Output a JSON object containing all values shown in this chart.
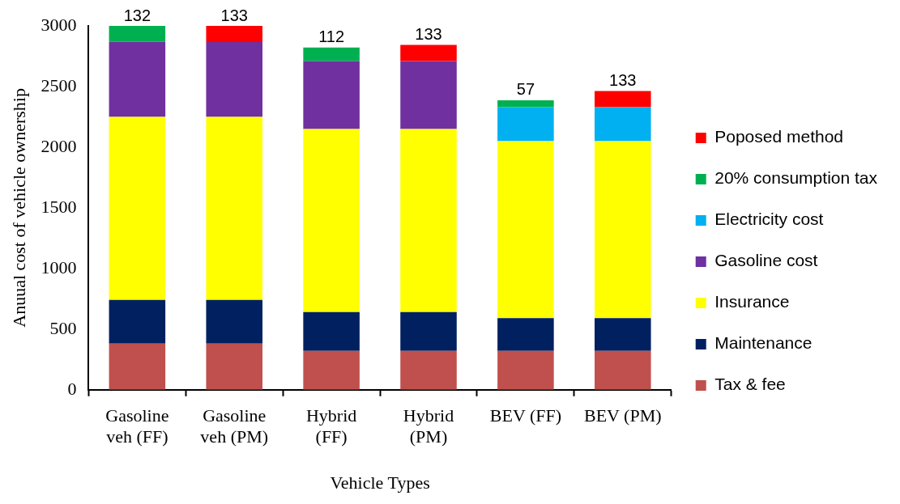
{
  "chart_data": {
    "type": "bar",
    "stacked": true,
    "xlabel": "Vehicle Types",
    "ylabel": "Anuual cost of vehicle ownership",
    "categories": [
      "Gasoline veh (FF)",
      "Gasoline veh (PM)",
      "Hybrid (FF)",
      "Hybrid (PM)",
      "BEV (FF)",
      "BEV (PM)"
    ],
    "ylim": [
      0,
      3000
    ],
    "yticks": [
      0,
      500,
      1000,
      1500,
      2000,
      2500,
      3000
    ],
    "grid": false,
    "legend": "right",
    "series": [
      {
        "name": "Tax & fee",
        "color": "#c0504d",
        "values": [
          380,
          380,
          320,
          320,
          320,
          320
        ]
      },
      {
        "name": "Maintenance",
        "color": "#002060",
        "values": [
          360,
          360,
          320,
          320,
          270,
          270
        ]
      },
      {
        "name": "Insurance",
        "color": "#ffff00",
        "values": [
          1510,
          1510,
          1510,
          1510,
          1460,
          1460
        ]
      },
      {
        "name": "Gasoline cost",
        "color": "#7030a0",
        "values": [
          618,
          617,
          560,
          560,
          null,
          null
        ]
      },
      {
        "name": "Electricity cost",
        "color": "#00b0f0",
        "values": [
          null,
          null,
          null,
          null,
          280,
          280
        ]
      },
      {
        "name": "20% consumption tax",
        "color": "#00b050",
        "values": [
          132,
          null,
          112,
          null,
          57,
          null
        ],
        "value_labels": [
          "132",
          null,
          "112",
          null,
          "57",
          null
        ]
      },
      {
        "name": "Poposed method",
        "color": "#ff0000",
        "values": [
          null,
          133,
          null,
          133,
          null,
          133
        ],
        "value_labels": [
          null,
          "133",
          null,
          "133",
          null,
          "133"
        ]
      }
    ]
  }
}
